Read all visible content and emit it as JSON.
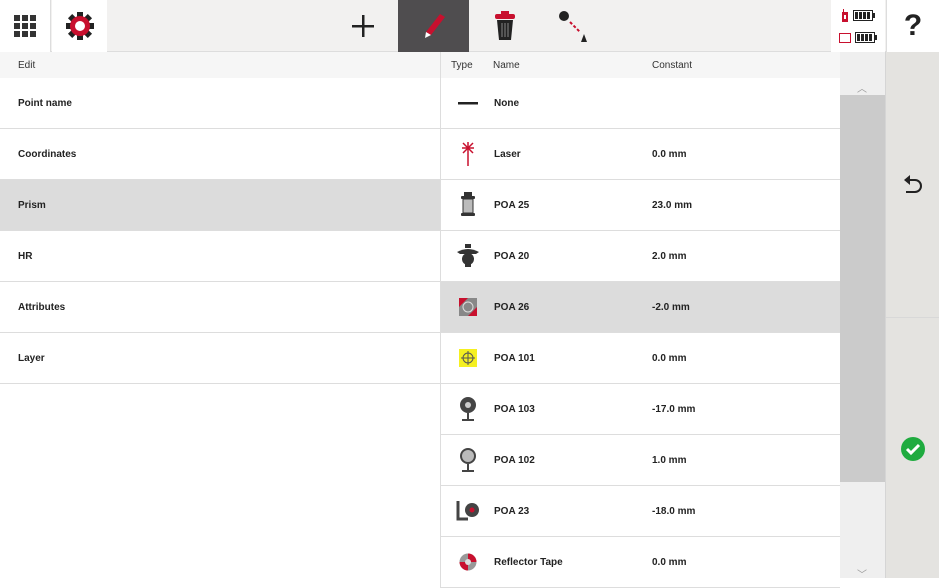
{
  "toolbar": {
    "apps": "apps-grid-icon",
    "settings": "gear-icon",
    "add": "plus-icon",
    "edit": "pencil-icon",
    "delete": "trash-icon",
    "measure": "distance-icon",
    "help": "?"
  },
  "colors": {
    "accent": "#c8102e",
    "active_tool": "#4f4d4f",
    "ok": "#1fab3f"
  },
  "edit": {
    "header": "Edit",
    "items": [
      {
        "label": "Point name"
      },
      {
        "label": "Coordinates"
      },
      {
        "label": "Prism",
        "selected": true
      },
      {
        "label": "HR"
      },
      {
        "label": "Attributes"
      },
      {
        "label": "Layer"
      }
    ]
  },
  "prisms": {
    "headers": {
      "type": "Type",
      "name": "Name",
      "constant": "Constant"
    },
    "rows": [
      {
        "icon": "none-dash-icon",
        "name": "None",
        "constant": ""
      },
      {
        "icon": "laser-icon",
        "name": "Laser",
        "constant": "0.0 mm"
      },
      {
        "icon": "prism-poa25-icon",
        "name": "POA 25",
        "constant": "23.0 mm"
      },
      {
        "icon": "prism-poa20-icon",
        "name": "POA 20",
        "constant": "2.0 mm"
      },
      {
        "icon": "target-poa26-icon",
        "name": "POA 26",
        "constant": "-2.0 mm",
        "selected": true
      },
      {
        "icon": "target-poa101-icon",
        "name": "POA 101",
        "constant": "0.0 mm"
      },
      {
        "icon": "prism-poa103-icon",
        "name": "POA 103",
        "constant": "-17.0 mm"
      },
      {
        "icon": "prism-poa102-icon",
        "name": "POA 102",
        "constant": "1.0 mm"
      },
      {
        "icon": "prism-poa23-icon",
        "name": "POA 23",
        "constant": "-18.0 mm"
      },
      {
        "icon": "reflector-tape-icon",
        "name": "Reflector Tape",
        "constant": "0.0 mm"
      }
    ]
  }
}
